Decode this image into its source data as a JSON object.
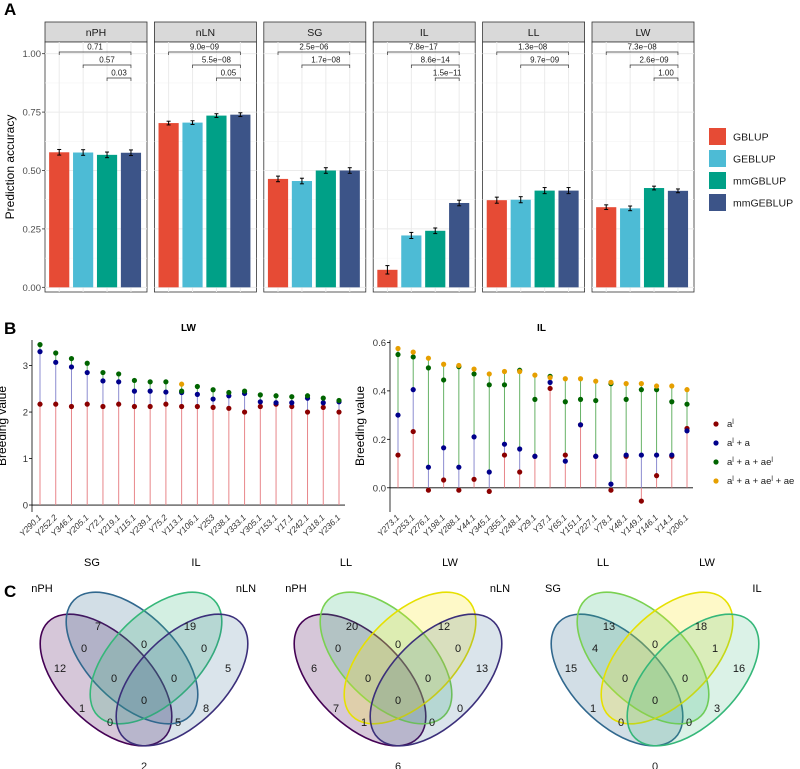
{
  "colors": {
    "GBLUP": "#E64B35",
    "GEBLUP": "#4DBBD5",
    "mmGBLUP": "#00A087",
    "mmGEBLUP": "#3C5488",
    "strip": "#D9D9D9",
    "grid": "#EBEBEB",
    "a1": "#8B0000",
    "a2": "#00008B",
    "a3": "#006400",
    "a4": "#E69F00",
    "seg_red": "#E8868A",
    "seg_green": "#66B266",
    "venn1": "#440154",
    "venn2": "#31688E",
    "venn3": "#35B779",
    "venn4": "#FDE725"
  },
  "chart_data": [
    {
      "id": "A",
      "panel_label": "A",
      "type": "bar",
      "ylabel": "Prediction accuracy",
      "ylim": [
        -0.02,
        1.05
      ],
      "yticks": [
        "0.00",
        "0.25",
        "0.50",
        "0.75",
        "1.00"
      ],
      "ytick_values": [
        0,
        0.25,
        0.5,
        0.75,
        1.0
      ],
      "series_names": [
        "GBLUP",
        "GEBLUP",
        "mmGBLUP",
        "mmGEBLUP"
      ],
      "facets": [
        {
          "name": "nPH",
          "values": [
            0.578,
            0.577,
            0.567,
            0.576
          ],
          "errors": [
            0.012,
            0.012,
            0.012,
            0.012
          ],
          "pvalues": [
            {
              "text": "0.71",
              "from": 1,
              "to": 4
            },
            {
              "text": "0.57",
              "from": 2,
              "to": 4
            },
            {
              "text": "0.03",
              "from": 3,
              "to": 4
            }
          ]
        },
        {
          "name": "nLN",
          "values": [
            0.703,
            0.705,
            0.735,
            0.739
          ],
          "errors": [
            0.008,
            0.008,
            0.008,
            0.008
          ],
          "pvalues": [
            {
              "text": "9.0e−09",
              "from": 1,
              "to": 4
            },
            {
              "text": "5.5e−08",
              "from": 2,
              "to": 4
            },
            {
              "text": "0.05",
              "from": 3,
              "to": 4
            }
          ]
        },
        {
          "name": "SG",
          "values": [
            0.464,
            0.455,
            0.5,
            0.5
          ],
          "errors": [
            0.012,
            0.012,
            0.012,
            0.012
          ],
          "pvalues": [
            {
              "text": "2.5e−06",
              "from": 1,
              "to": 4
            },
            {
              "text": "1.7e−08",
              "from": 2,
              "to": 4
            }
          ]
        },
        {
          "name": "IL",
          "values": [
            0.075,
            0.222,
            0.242,
            0.361
          ],
          "errors": [
            0.018,
            0.013,
            0.012,
            0.012
          ],
          "pvalues": [
            {
              "text": "7.8e−17",
              "from": 1,
              "to": 4
            },
            {
              "text": "8.6e−14",
              "from": 2,
              "to": 4
            },
            {
              "text": "1.5e−11",
              "from": 3,
              "to": 4
            }
          ]
        },
        {
          "name": "LL",
          "values": [
            0.373,
            0.375,
            0.414,
            0.414
          ],
          "errors": [
            0.013,
            0.013,
            0.013,
            0.013
          ],
          "pvalues": [
            {
              "text": "1.3e−08",
              "from": 1,
              "to": 4
            },
            {
              "text": "9.7e−09",
              "from": 2,
              "to": 4
            }
          ]
        },
        {
          "name": "LW",
          "values": [
            0.343,
            0.338,
            0.425,
            0.413
          ],
          "errors": [
            0.01,
            0.01,
            0.008,
            0.008
          ],
          "pvalues": [
            {
              "text": "7.3e−08",
              "from": 1,
              "to": 4
            },
            {
              "text": "2.6e−09",
              "from": 2,
              "to": 4
            },
            {
              "text": "1.00",
              "from": 3,
              "to": 4
            }
          ]
        }
      ],
      "legend": [
        "GBLUP",
        "GEBLUP",
        "mmGBLUP",
        "mmGEBLUP"
      ]
    },
    {
      "id": "B1",
      "panel_label": "B",
      "type": "scatter",
      "title": "LW",
      "ylabel": "Breeding value",
      "ylim": [
        -0.15,
        3.55
      ],
      "yticks": [
        "0",
        "1",
        "2",
        "3"
      ],
      "ytick_values": [
        0,
        1,
        2,
        3
      ],
      "categories": [
        "Y290.1",
        "Y252.2",
        "Y346.1",
        "Y205.1",
        "Y72.1",
        "Y219.1",
        "Y115.1",
        "Y239.1",
        "Y75.2",
        "Y113.1",
        "Y106.1",
        "Y253",
        "Y238.1",
        "Y333.1",
        "Y305.1",
        "Y153.1",
        "Y17.1",
        "Y242.1",
        "Y318.1",
        "Y236.1"
      ],
      "a1": [
        2.17,
        2.17,
        2.12,
        2.17,
        2.12,
        2.17,
        2.12,
        2.12,
        2.17,
        2.12,
        2.12,
        2.1,
        2.08,
        2.0,
        2.12,
        2.17,
        2.12,
        2.0,
        2.1,
        2.0
      ],
      "a2": [
        3.3,
        3.07,
        2.97,
        2.85,
        2.67,
        2.65,
        2.45,
        2.45,
        2.43,
        2.42,
        2.38,
        2.28,
        2.35,
        2.4,
        2.22,
        2.2,
        2.2,
        2.3,
        2.2,
        2.22
      ],
      "a3": [
        3.45,
        3.27,
        3.15,
        3.05,
        2.85,
        2.82,
        2.68,
        2.65,
        2.65,
        2.45,
        2.55,
        2.48,
        2.42,
        2.45,
        2.37,
        2.35,
        2.33,
        2.35,
        2.3,
        2.25
      ],
      "a4": [
        null,
        null,
        null,
        null,
        null,
        null,
        null,
        null,
        null,
        2.6,
        null,
        null,
        null,
        null,
        null,
        null,
        null,
        null,
        null,
        null
      ],
      "xlabels_italic": true
    },
    {
      "id": "B2",
      "panel_label": "",
      "type": "scatter",
      "title": "IL",
      "ylabel": "Breeding value",
      "ylim": [
        -0.1,
        0.61
      ],
      "yticks": [
        "0.0",
        "0.2",
        "0.4",
        "0.6"
      ],
      "ytick_values": [
        0,
        0.2,
        0.4,
        0.6
      ],
      "categories": [
        "Y273.1",
        "Y253.1",
        "Y276.1",
        "Y198.1",
        "Y288.1",
        "Y44.1",
        "Y345.1",
        "Y355.1",
        "Y248.1",
        "Y29.1",
        "Y37.1",
        "Y65.1",
        "Y151.1",
        "Y227.1",
        "Y78.1",
        "Y48.1",
        "Y149.1",
        "Y146.1",
        "Y14.1",
        "Y206.1"
      ],
      "a1": [
        0.135,
        0.232,
        -0.01,
        0.032,
        -0.01,
        0.035,
        -0.015,
        0.135,
        0.065,
        0.13,
        0.41,
        0.135,
        0.26,
        0.13,
        -0.01,
        0.13,
        -0.055,
        0.05,
        0.13,
        0.245
      ],
      "a2": [
        0.3,
        0.405,
        0.085,
        0.165,
        0.085,
        0.21,
        0.065,
        0.18,
        0.16,
        0.13,
        0.435,
        0.11,
        0.26,
        0.13,
        0.015,
        0.135,
        0.135,
        0.135,
        0.135,
        0.235
      ],
      "a3": [
        0.55,
        0.54,
        0.495,
        0.445,
        0.5,
        0.47,
        0.425,
        0.425,
        0.485,
        0.365,
        0.46,
        0.355,
        0.365,
        0.36,
        0.43,
        0.365,
        0.405,
        0.405,
        0.355,
        0.345
      ],
      "a4": [
        0.575,
        0.56,
        0.535,
        0.51,
        0.505,
        0.49,
        0.47,
        0.48,
        0.48,
        0.465,
        0.455,
        0.45,
        0.45,
        0.44,
        0.435,
        0.43,
        0.43,
        0.42,
        0.42,
        0.405
      ],
      "legend": [
        {
          "key": "a1",
          "label": "a",
          "sup": "l",
          "rest": ""
        },
        {
          "key": "a2",
          "label": "a",
          "sup": "l",
          "rest": " + a"
        },
        {
          "key": "a3",
          "label": "a",
          "sup": "l",
          "rest": " + a + ae",
          "sup2": "l"
        },
        {
          "key": "a4",
          "label": "a",
          "sup": "l",
          "rest": " + a + ae",
          "sup2": "l",
          "rest2": " + ae"
        }
      ]
    }
  ],
  "venn": {
    "panel_label": "C",
    "diagrams": [
      {
        "sets": [
          "nPH",
          "SG",
          "IL",
          "nLN"
        ],
        "regions": {
          "A": "12",
          "B": "7",
          "C": "19",
          "D": "5",
          "AB": "0",
          "BC": "0",
          "CD": "0",
          "AC": "1",
          "BD": "8",
          "AD": "2",
          "ABC": "0",
          "BCD": "0",
          "ABD": "5",
          "ACD": "0",
          "ABCD": "0"
        }
      },
      {
        "sets": [
          "nPH",
          "LL",
          "LW",
          "nLN"
        ],
        "regions": {
          "A": "6",
          "B": "20",
          "C": "12",
          "D": "13",
          "AB": "0",
          "BC": "0",
          "CD": "0",
          "AC": "7",
          "BD": "0",
          "AD": "6",
          "ABC": "0",
          "BCD": "0",
          "ABD": "0",
          "ACD": "1",
          "ABCD": "0"
        }
      },
      {
        "sets": [
          "SG",
          "LL",
          "LW",
          "IL"
        ],
        "regions": {
          "A": "15",
          "B": "13",
          "C": "18",
          "D": "16",
          "AB": "4",
          "BC": "0",
          "CD": "1",
          "AC": "1",
          "BD": "3",
          "AD": "0",
          "ABC": "0",
          "BCD": "0",
          "ABD": "0",
          "ACD": "0",
          "ABCD": "0"
        }
      }
    ]
  }
}
